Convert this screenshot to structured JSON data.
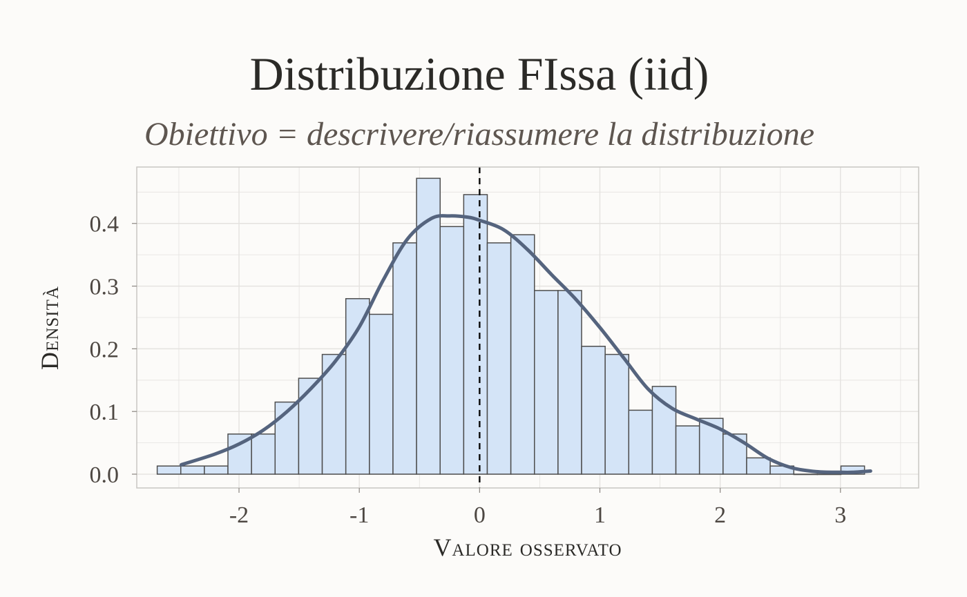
{
  "chart_data": {
    "type": "bar",
    "title": "Distribuzione FIssa (iid)",
    "subtitle": "Obiettivo = descrivere/riassumere la distribuzione",
    "xlabel": "Valore osservato",
    "ylabel": "Densità",
    "xlim": [
      -2.85,
      3.65
    ],
    "ylim": [
      -0.022,
      0.49
    ],
    "x_ticks": [
      -2,
      -1,
      0,
      1,
      2,
      3
    ],
    "x_tick_labels": [
      "-2",
      "-1",
      "0",
      "1",
      "2",
      "3"
    ],
    "y_ticks": [
      0.0,
      0.1,
      0.2,
      0.3,
      0.4
    ],
    "y_tick_labels": [
      "0.0",
      "0.1",
      "0.2",
      "0.3",
      "0.4"
    ],
    "grid": true,
    "bin_width": 0.196,
    "bins": [
      {
        "x0": -2.68,
        "density": 0.013
      },
      {
        "x0": -2.484,
        "density": 0.013
      },
      {
        "x0": -2.288,
        "density": 0.013
      },
      {
        "x0": -2.092,
        "density": 0.064
      },
      {
        "x0": -1.896,
        "density": 0.064
      },
      {
        "x0": -1.7,
        "density": 0.115
      },
      {
        "x0": -1.504,
        "density": 0.153
      },
      {
        "x0": -1.308,
        "density": 0.191
      },
      {
        "x0": -1.112,
        "density": 0.28
      },
      {
        "x0": -0.916,
        "density": 0.255
      },
      {
        "x0": -0.72,
        "density": 0.369
      },
      {
        "x0": -0.524,
        "density": 0.472
      },
      {
        "x0": -0.328,
        "density": 0.395
      },
      {
        "x0": -0.132,
        "density": 0.446
      },
      {
        "x0": 0.064,
        "density": 0.369
      },
      {
        "x0": 0.26,
        "density": 0.382
      },
      {
        "x0": 0.456,
        "density": 0.293
      },
      {
        "x0": 0.652,
        "density": 0.293
      },
      {
        "x0": 0.848,
        "density": 0.204
      },
      {
        "x0": 1.044,
        "density": 0.191
      },
      {
        "x0": 1.24,
        "density": 0.102
      },
      {
        "x0": 1.436,
        "density": 0.14
      },
      {
        "x0": 1.632,
        "density": 0.077
      },
      {
        "x0": 1.828,
        "density": 0.089
      },
      {
        "x0": 2.024,
        "density": 0.064
      },
      {
        "x0": 2.22,
        "density": 0.026
      },
      {
        "x0": 2.416,
        "density": 0.013
      },
      {
        "x0": 2.612,
        "density": 0.0
      },
      {
        "x0": 2.808,
        "density": 0.0
      },
      {
        "x0": 3.004,
        "density": 0.013
      }
    ],
    "density_curve": {
      "x": [
        -2.48,
        -2.2,
        -2.0,
        -1.8,
        -1.6,
        -1.4,
        -1.2,
        -1.0,
        -0.8,
        -0.6,
        -0.4,
        -0.25,
        -0.1,
        0.0,
        0.2,
        0.4,
        0.6,
        0.8,
        1.0,
        1.2,
        1.4,
        1.6,
        1.8,
        2.0,
        2.2,
        2.4,
        2.6,
        2.8,
        3.0,
        3.1,
        3.25
      ],
      "y": [
        0.015,
        0.032,
        0.048,
        0.07,
        0.1,
        0.137,
        0.18,
        0.235,
        0.31,
        0.375,
        0.408,
        0.412,
        0.41,
        0.405,
        0.39,
        0.358,
        0.318,
        0.279,
        0.234,
        0.185,
        0.136,
        0.105,
        0.088,
        0.072,
        0.05,
        0.025,
        0.01,
        0.004,
        0.003,
        0.003,
        0.005
      ]
    },
    "reference_line": {
      "x": 0,
      "style": "dashed"
    },
    "colors": {
      "bar_fill": "#d4e4f7",
      "bar_stroke": "#4d4d4d",
      "curve": "#55647e",
      "reference_line": "#111111",
      "grid": "#e4e2df",
      "panel_border": "#c8c6c3",
      "background": "#fcfbf9"
    }
  }
}
